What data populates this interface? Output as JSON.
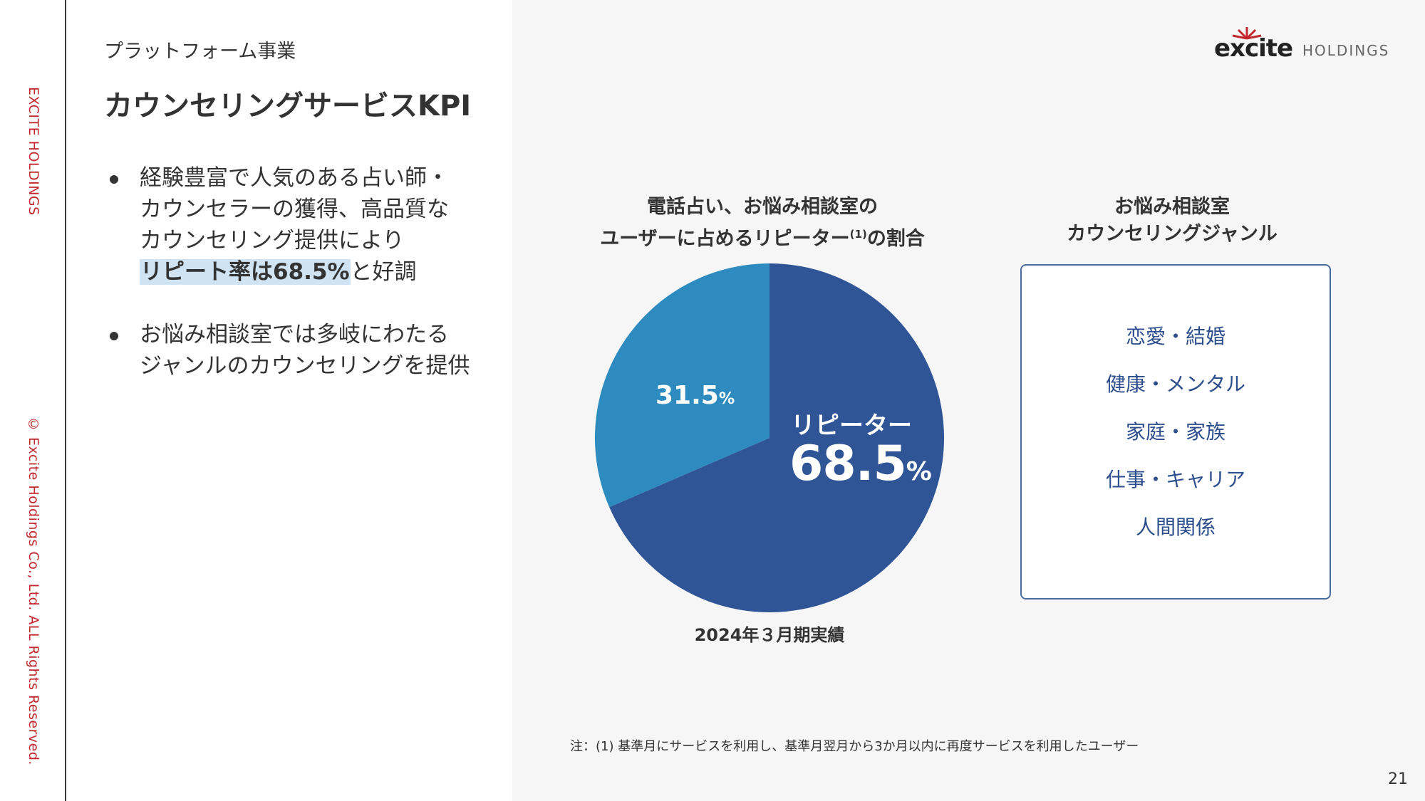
{
  "side": {
    "brand": "EXCITE HOLDINGS",
    "copyright": "© Excite Holdings Co., Ltd. ALL Rights Reserved."
  },
  "header": {
    "section": "プラットフォーム事業",
    "title": "カウンセリングサービスKPI"
  },
  "logo": {
    "wordmark": "excite",
    "suffix": "HOLDINGS",
    "accent_color": "#c0282d"
  },
  "bullets": [
    {
      "line1": "経験豊富で人気のある占い師・",
      "line2": "カウンセラーの獲得、高品質な",
      "line3": "カウンセリング提供により",
      "highlight": "リピート率は68.5%",
      "after_highlight": "と好調"
    },
    {
      "line1": "お悩み相談室では多岐にわたる",
      "line2": "ジャンルのカウンセリングを提供"
    }
  ],
  "chart_data": {
    "type": "pie",
    "title_line1": "電話占い、お悩み相談室の",
    "title_line2_pre": "ユーザーに占めるリピーター",
    "title_sup": "(1)",
    "title_line2_post": "の割合",
    "slices": [
      {
        "label": "リピーター",
        "value": 68.5,
        "value_text": "68.5",
        "color": "#2f5597"
      },
      {
        "label": "",
        "value": 31.5,
        "value_text": "31.5",
        "color": "#2e8bc0"
      }
    ],
    "unit": "%",
    "period": "2024年３月期実績"
  },
  "genres": {
    "title_line1": "お悩み相談室",
    "title_line2": "カウンセリングジャンル",
    "items": [
      "恋愛・結婚",
      "健康・メンタル",
      "家庭・家族",
      "仕事・キャリア",
      "人間関係"
    ]
  },
  "footnote": "注：(1) 基準月にサービスを利用し、基準月翌月から3か月以内に再度サービスを利用したユーザー",
  "page_number": "21"
}
